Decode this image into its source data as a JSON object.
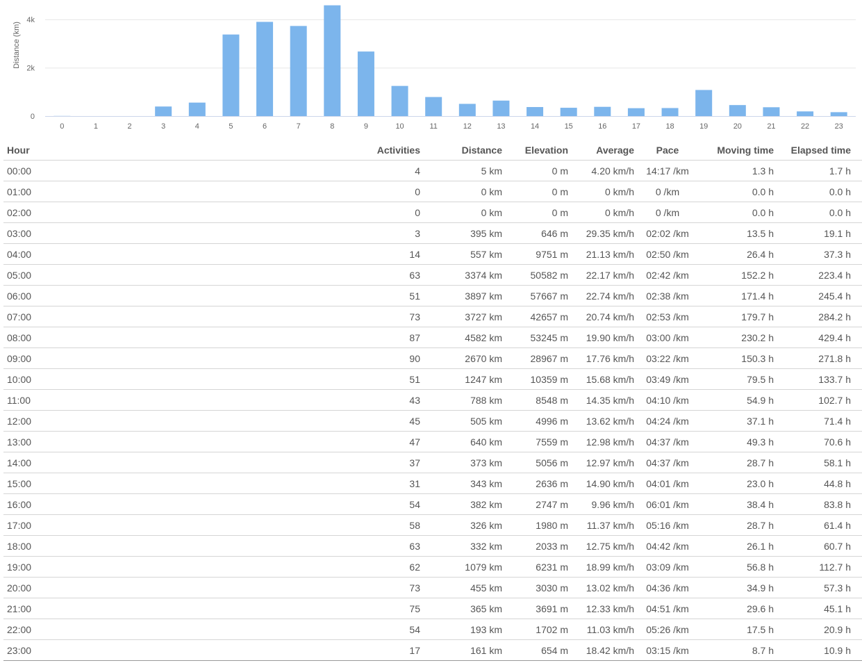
{
  "colors": {
    "bar": "#7cb5ec",
    "grid": "#e6e6e6",
    "axis": "#ccd6eb",
    "text": "#555555"
  },
  "chart_data": {
    "type": "bar",
    "categories": [
      "0",
      "1",
      "2",
      "3",
      "4",
      "5",
      "6",
      "7",
      "8",
      "9",
      "10",
      "11",
      "12",
      "13",
      "14",
      "15",
      "16",
      "17",
      "18",
      "19",
      "20",
      "21",
      "22",
      "23"
    ],
    "series": [
      {
        "values": [
          5,
          0,
          0,
          395,
          557,
          3374,
          3897,
          3727,
          4582,
          2670,
          1247,
          788,
          505,
          640,
          373,
          343,
          382,
          326,
          332,
          1079,
          455,
          365,
          193,
          161
        ]
      }
    ],
    "ylabel": "Distance (km)",
    "yticks": [
      {
        "value": 0,
        "label": "0"
      },
      {
        "value": 2000,
        "label": "2k"
      },
      {
        "value": 4000,
        "label": "4k"
      }
    ],
    "ylim": [
      0,
      4600
    ],
    "grid": true,
    "legend": "none"
  },
  "table": {
    "headers": {
      "hour": "Hour",
      "activities": "Activities",
      "distance": "Distance",
      "elevation": "Elevation",
      "average": "Average",
      "pace": "Pace",
      "moving": "Moving time",
      "elapsed": "Elapsed time"
    },
    "rows": [
      [
        "00:00",
        "4",
        "5 km",
        "0 m",
        "4.20 km/h",
        "14:17 /km",
        "1.3 h",
        "1.7 h"
      ],
      [
        "01:00",
        "0",
        "0 km",
        "0 m",
        "0 km/h",
        "0 /km",
        "0.0 h",
        "0.0 h"
      ],
      [
        "02:00",
        "0",
        "0 km",
        "0 m",
        "0 km/h",
        "0 /km",
        "0.0 h",
        "0.0 h"
      ],
      [
        "03:00",
        "3",
        "395 km",
        "646 m",
        "29.35 km/h",
        "02:02 /km",
        "13.5 h",
        "19.1 h"
      ],
      [
        "04:00",
        "14",
        "557 km",
        "9751 m",
        "21.13 km/h",
        "02:50 /km",
        "26.4 h",
        "37.3 h"
      ],
      [
        "05:00",
        "63",
        "3374 km",
        "50582 m",
        "22.17 km/h",
        "02:42 /km",
        "152.2 h",
        "223.4 h"
      ],
      [
        "06:00",
        "51",
        "3897 km",
        "57667 m",
        "22.74 km/h",
        "02:38 /km",
        "171.4 h",
        "245.4 h"
      ],
      [
        "07:00",
        "73",
        "3727 km",
        "42657 m",
        "20.74 km/h",
        "02:53 /km",
        "179.7 h",
        "284.2 h"
      ],
      [
        "08:00",
        "87",
        "4582 km",
        "53245 m",
        "19.90 km/h",
        "03:00 /km",
        "230.2 h",
        "429.4 h"
      ],
      [
        "09:00",
        "90",
        "2670 km",
        "28967 m",
        "17.76 km/h",
        "03:22 /km",
        "150.3 h",
        "271.8 h"
      ],
      [
        "10:00",
        "51",
        "1247 km",
        "10359 m",
        "15.68 km/h",
        "03:49 /km",
        "79.5 h",
        "133.7 h"
      ],
      [
        "11:00",
        "43",
        "788 km",
        "8548 m",
        "14.35 km/h",
        "04:10 /km",
        "54.9 h",
        "102.7 h"
      ],
      [
        "12:00",
        "45",
        "505 km",
        "4996 m",
        "13.62 km/h",
        "04:24 /km",
        "37.1 h",
        "71.4 h"
      ],
      [
        "13:00",
        "47",
        "640 km",
        "7559 m",
        "12.98 km/h",
        "04:37 /km",
        "49.3 h",
        "70.6 h"
      ],
      [
        "14:00",
        "37",
        "373 km",
        "5056 m",
        "12.97 km/h",
        "04:37 /km",
        "28.7 h",
        "58.1 h"
      ],
      [
        "15:00",
        "31",
        "343 km",
        "2636 m",
        "14.90 km/h",
        "04:01 /km",
        "23.0 h",
        "44.8 h"
      ],
      [
        "16:00",
        "54",
        "382 km",
        "2747 m",
        "9.96 km/h",
        "06:01 /km",
        "38.4 h",
        "83.8 h"
      ],
      [
        "17:00",
        "58",
        "326 km",
        "1980 m",
        "11.37 km/h",
        "05:16 /km",
        "28.7 h",
        "61.4 h"
      ],
      [
        "18:00",
        "63",
        "332 km",
        "2033 m",
        "12.75 km/h",
        "04:42 /km",
        "26.1 h",
        "60.7 h"
      ],
      [
        "19:00",
        "62",
        "1079 km",
        "6231 m",
        "18.99 km/h",
        "03:09 /km",
        "56.8 h",
        "112.7 h"
      ],
      [
        "20:00",
        "73",
        "455 km",
        "3030 m",
        "13.02 km/h",
        "04:36 /km",
        "34.9 h",
        "57.3 h"
      ],
      [
        "21:00",
        "75",
        "365 km",
        "3691 m",
        "12.33 km/h",
        "04:51 /km",
        "29.6 h",
        "45.1 h"
      ],
      [
        "22:00",
        "54",
        "193 km",
        "1702 m",
        "11.03 km/h",
        "05:26 /km",
        "17.5 h",
        "20.9 h"
      ],
      [
        "23:00",
        "17",
        "161 km",
        "654 m",
        "18.42 km/h",
        "03:15 /km",
        "8.7 h",
        "10.9 h"
      ]
    ]
  }
}
